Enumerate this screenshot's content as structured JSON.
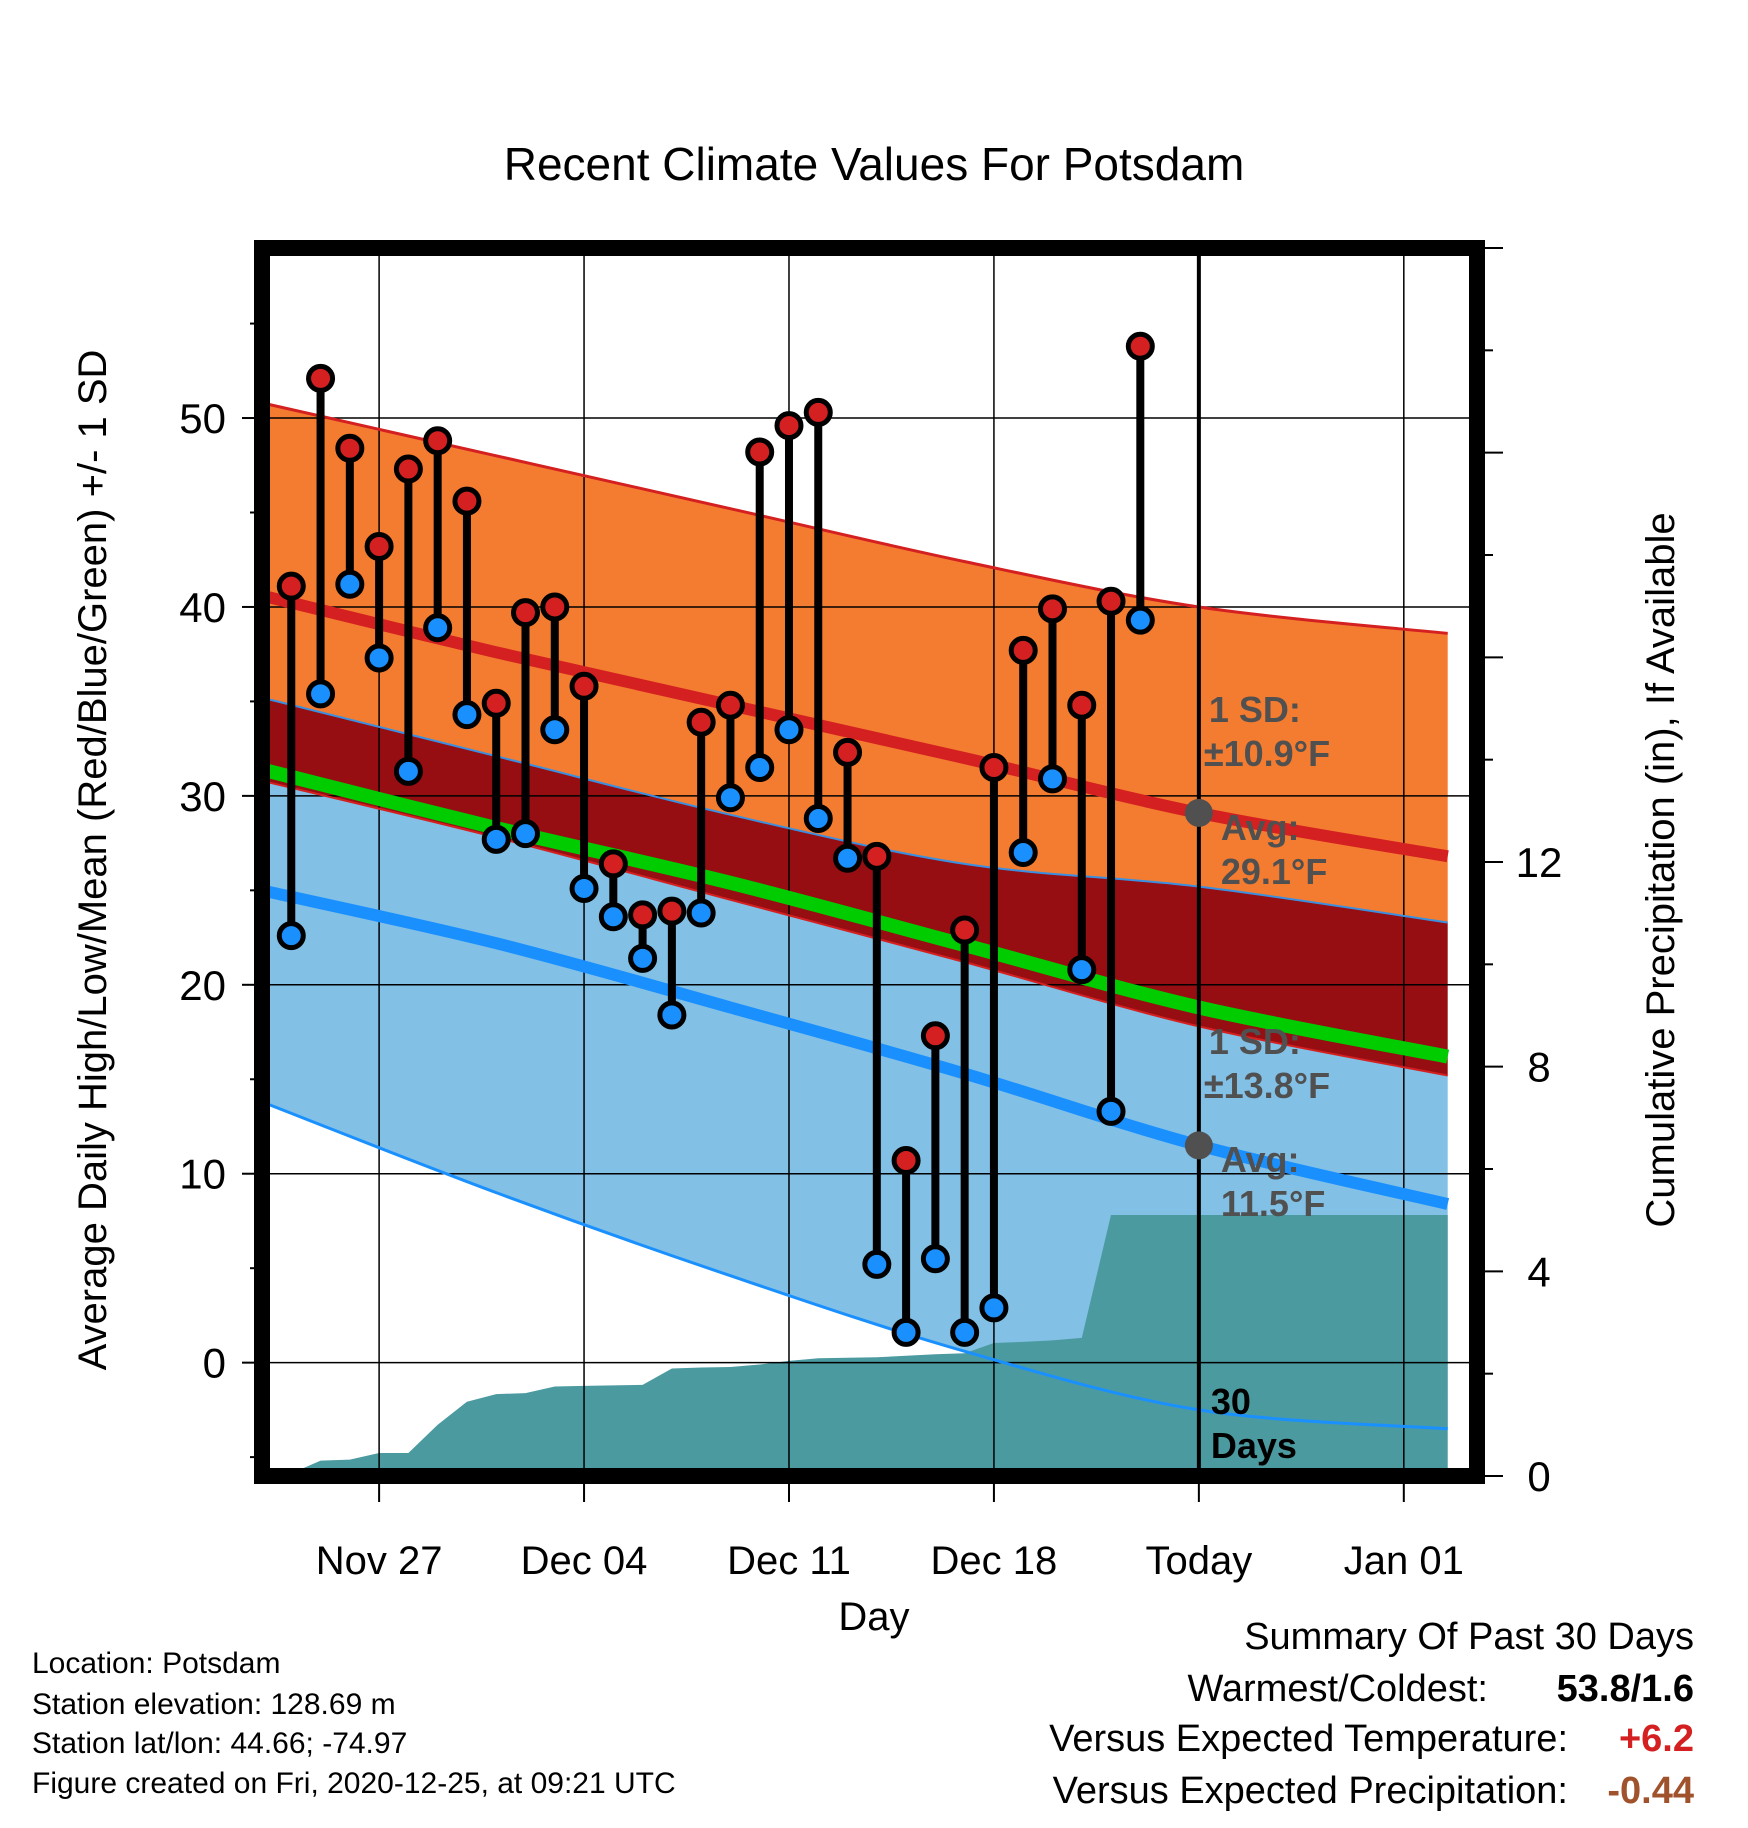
{
  "chart_data": {
    "type": "line",
    "title": "Recent Climate Values For Potsdam",
    "xlabel": "Day",
    "ylabel": "Average Daily High/Low/Mean (Red/Blue/Green) +/- 1 SD",
    "y2label": "Cumulative Precipitation (in), If Available",
    "xlim": [
      "Nov 23",
      "Jan 03"
    ],
    "ylim": [
      -6,
      59
    ],
    "y2lim": [
      0,
      24
    ],
    "x_tick_labels": [
      "Nov 27",
      "Dec 04",
      "Dec 11",
      "Dec 18",
      "Today",
      "Jan 01"
    ],
    "x_tick_days": [
      4,
      11,
      18,
      25,
      32,
      39
    ],
    "y_ticks": [
      0,
      10,
      20,
      30,
      40,
      50
    ],
    "y2_ticks": [
      0,
      4,
      8,
      12
    ],
    "grid": true,
    "normals": {
      "days": [
        0,
        8,
        16,
        24,
        32,
        40.5
      ],
      "avg_high": [
        40.6,
        37.6,
        34.8,
        32.0,
        29.1,
        26.8
      ],
      "high_sd_upper": [
        50.8,
        48.0,
        45.2,
        42.4,
        40.0,
        38.6
      ],
      "high_sd_lower": [
        35.2,
        32.1,
        29.0,
        26.4,
        25.2,
        23.3
      ],
      "avg_mean": [
        31.4,
        28.3,
        25.4,
        22.1,
        18.8,
        16.2
      ],
      "avg_low": [
        25.0,
        22.2,
        18.8,
        15.3,
        11.5,
        8.4
      ],
      "low_sd_upper": [
        30.8,
        27.8,
        24.5,
        21.2,
        17.8,
        15.2
      ],
      "low_sd_lower": [
        13.8,
        9.0,
        4.6,
        0.6,
        -2.5,
        -3.5
      ]
    },
    "series": [
      {
        "name": "Daily High",
        "color": "#d42020",
        "days": [
          1,
          2,
          3,
          4,
          5,
          6,
          7,
          8,
          9,
          10,
          11,
          12,
          13,
          14,
          15,
          16,
          17,
          18,
          19,
          20,
          21,
          22,
          23,
          24,
          25,
          26,
          27,
          28,
          29,
          30,
          31
        ],
        "values": [
          41.1,
          52.1,
          48.4,
          43.2,
          47.3,
          48.8,
          45.6,
          34.9,
          39.7,
          40.0,
          35.8,
          26.4,
          23.7,
          23.9,
          33.9,
          34.8,
          48.2,
          49.6,
          50.3,
          32.3,
          26.8,
          10.7,
          17.3,
          22.9,
          31.5,
          37.7,
          39.9,
          34.8,
          40.3,
          53.8,
          null
        ]
      },
      {
        "name": "Daily Low",
        "color": "#1a90ff",
        "days": [
          1,
          2,
          3,
          4,
          5,
          6,
          7,
          8,
          9,
          10,
          11,
          12,
          13,
          14,
          15,
          16,
          17,
          18,
          19,
          20,
          21,
          22,
          23,
          24,
          25,
          26,
          27,
          28,
          29,
          30,
          31
        ],
        "values": [
          22.6,
          35.4,
          41.2,
          37.3,
          31.3,
          38.9,
          34.3,
          27.7,
          28.0,
          33.5,
          25.1,
          23.6,
          21.4,
          18.4,
          23.8,
          29.9,
          31.5,
          33.5,
          28.8,
          26.7,
          5.2,
          1.6,
          5.5,
          1.6,
          2.9,
          27.0,
          30.9,
          20.8,
          13.3,
          39.3,
          null
        ]
      },
      {
        "name": "Cumulative Precipitation",
        "color": "#4a9aa0",
        "days": [
          1,
          2,
          3,
          4,
          5,
          6,
          7,
          8,
          9,
          10,
          11,
          12,
          13,
          14,
          15,
          16,
          17,
          18,
          19,
          20,
          21,
          22,
          23,
          24,
          25,
          26,
          27,
          28,
          29,
          30,
          31,
          32,
          40.5
        ],
        "values": [
          0.05,
          0.3,
          0.32,
          0.45,
          0.45,
          1.0,
          1.45,
          1.6,
          1.62,
          1.75,
          1.76,
          1.77,
          1.78,
          2.1,
          2.12,
          2.13,
          2.18,
          2.25,
          2.3,
          2.31,
          2.32,
          2.35,
          2.38,
          2.4,
          2.6,
          2.62,
          2.65,
          2.7,
          5.1,
          5.1,
          5.1,
          5.1,
          5.1
        ]
      }
    ],
    "annotations": {
      "high_sd_label_1": "1 SD:",
      "high_sd_label_2": "±10.9°F",
      "high_avg_label_1": "Avg:",
      "high_avg_label_2": "29.1°F",
      "low_sd_label_1": "1 SD:",
      "low_sd_label_2": "±13.8°F",
      "low_avg_label_1": "Avg:",
      "low_avg_label_2": "11.5°F",
      "precip_label_1": "30",
      "precip_label_2": "Days"
    }
  },
  "info": {
    "location": "Location: Potsdam",
    "elevation": "Station elevation: 128.69 m",
    "latlon": "Station lat/lon: 44.66; -74.97",
    "created": "Figure created on Fri, 2020-12-25, at 09:21 UTC"
  },
  "summary": {
    "title": "Summary Of Past 30 Days",
    "warmest_label": "Warmest/Coldest:",
    "warmest_value": "53.8/1.6",
    "temp_label": "Versus Expected Temperature:",
    "temp_value": "+6.2",
    "temp_color": "#d42020",
    "precip_label": "Versus Expected Precipitation:",
    "precip_value": "-0.44",
    "precip_color": "#a0522d"
  }
}
